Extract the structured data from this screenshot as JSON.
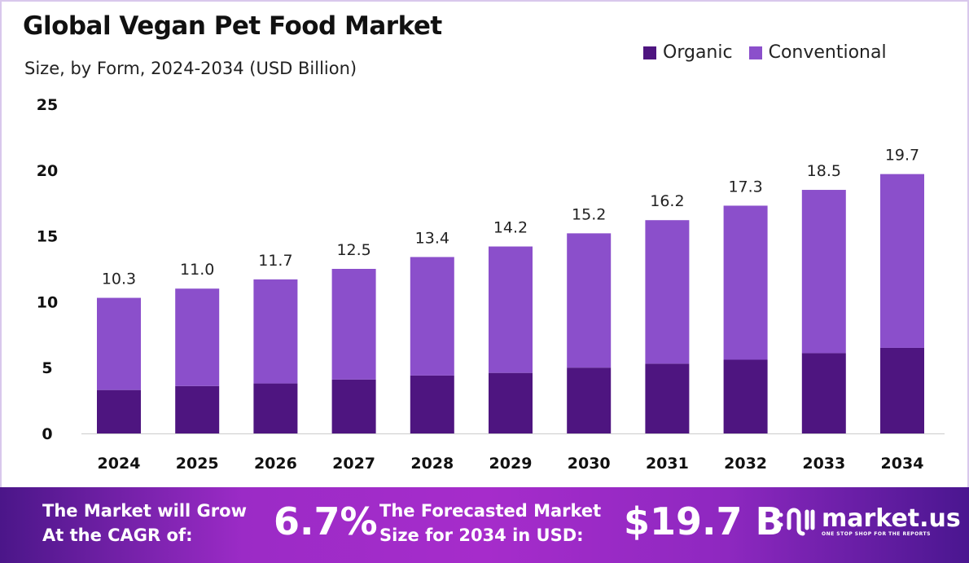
{
  "chart_data": {
    "type": "bar",
    "stacked": true,
    "title": "Global Vegan Pet Food Market",
    "subtitle": "Size, by Form, 2024-2034 (USD Billion)",
    "categories": [
      "2024",
      "2025",
      "2026",
      "2027",
      "2028",
      "2029",
      "2030",
      "2031",
      "2032",
      "2033",
      "2034"
    ],
    "series": [
      {
        "name": "Organic",
        "color": "#4e1580",
        "values": [
          3.3,
          3.6,
          3.8,
          4.1,
          4.4,
          4.6,
          5.0,
          5.3,
          5.6,
          6.1,
          6.5
        ]
      },
      {
        "name": "Conventional",
        "color": "#8b4fcb",
        "values": [
          7.0,
          7.4,
          7.9,
          8.4,
          9.0,
          9.6,
          10.2,
          10.9,
          11.7,
          12.4,
          13.2
        ]
      }
    ],
    "totals": [
      "10.3",
      "11.0",
      "11.7",
      "12.5",
      "13.4",
      "14.2",
      "15.2",
      "16.2",
      "17.3",
      "18.5",
      "19.7"
    ],
    "ylim": [
      0,
      25
    ],
    "yticks": [
      "0",
      "5",
      "10",
      "15",
      "20",
      "25"
    ],
    "grid": false,
    "legend_position": "top-right"
  },
  "footer": {
    "cagr_label_line1": "The Market will Grow",
    "cagr_label_line2": "At the CAGR of:",
    "cagr_value": "6.7%",
    "forecast_label_line1": "The Forecasted Market",
    "forecast_label_line2": "Size for 2034 in USD:",
    "forecast_value": "$19.7 B",
    "brand_name": "market.us",
    "brand_tagline": "ONE STOP SHOP FOR THE REPORTS"
  }
}
